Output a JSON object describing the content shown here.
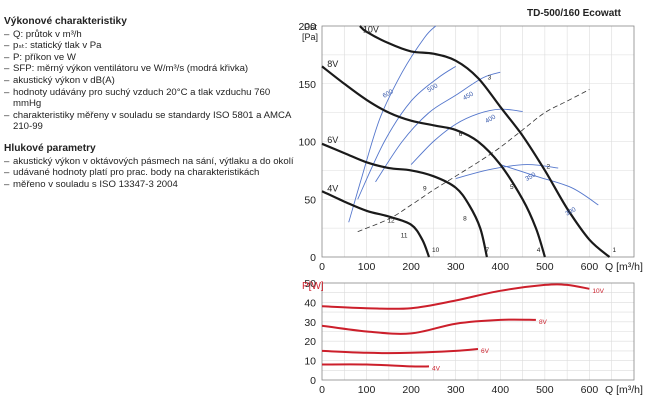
{
  "left_panel": {
    "perf_title": "Výkonové charakteristiky",
    "perf_items": [
      "Q: průtok v m³/h",
      "pₛₜ: statický tlak v Pa",
      "P: příkon ve W",
      "SFP: měrný výkon ventilátoru ve W/m³/s (modrá křivka)",
      "akustický výkon v dB(A)",
      "hodnoty udávány pro suchý vzduch 20°C a tlak vzduchu 760 mmHg",
      "charakteristiky měřeny v souladu se standardy ISO 5801 a AMCA 210-99"
    ],
    "noise_title": "Hlukové parametry",
    "noise_items": [
      "akustický výkon v oktávových pásmech na sání, výtlaku a do okolí",
      "udávané hodnoty platí pro prac. body na charakteristikách",
      "měřeno v souladu s ISO 13347-3 2004"
    ]
  },
  "chart_title": "TD-500/160 Ecowatt",
  "chart_data": [
    {
      "type": "line",
      "ylabel": "Pst [Pa]",
      "xlabel": "Q [m³/h]",
      "xlim": [
        0,
        700
      ],
      "ylim": [
        0,
        200
      ],
      "xticks": [
        0,
        100,
        200,
        300,
        400,
        500,
        600
      ],
      "yticks": [
        0,
        50,
        100,
        150,
        200
      ],
      "grid": true,
      "series": [
        {
          "name": "10V",
          "color": "#1a1a1a",
          "points": [
            [
              85,
              200
            ],
            [
              100,
              195
            ],
            [
              150,
              185
            ],
            [
              200,
              178
            ],
            [
              250,
              176
            ],
            [
              300,
              170
            ],
            [
              350,
              155
            ],
            [
              400,
              130
            ],
            [
              450,
              105
            ],
            [
              500,
              75
            ],
            [
              550,
              42
            ],
            [
              600,
              15
            ],
            [
              645,
              0
            ]
          ]
        },
        {
          "name": "8V",
          "color": "#1a1a1a",
          "points": [
            [
              0,
              165
            ],
            [
              50,
              150
            ],
            [
              100,
              136
            ],
            [
              150,
              125
            ],
            [
              200,
              118
            ],
            [
              250,
              114
            ],
            [
              300,
              110
            ],
            [
              350,
              100
            ],
            [
              400,
              80
            ],
            [
              450,
              50
            ],
            [
              480,
              25
            ],
            [
              500,
              0
            ]
          ]
        },
        {
          "name": "6V",
          "color": "#1a1a1a",
          "points": [
            [
              0,
              98
            ],
            [
              50,
              90
            ],
            [
              100,
              82
            ],
            [
              150,
              77
            ],
            [
              200,
              75
            ],
            [
              250,
              70
            ],
            [
              300,
              60
            ],
            [
              330,
              45
            ],
            [
              355,
              25
            ],
            [
              370,
              0
            ]
          ]
        },
        {
          "name": "4V",
          "color": "#1a1a1a",
          "points": [
            [
              0,
              57
            ],
            [
              50,
              48
            ],
            [
              100,
              40
            ],
            [
              150,
              35
            ],
            [
              200,
              28
            ],
            [
              225,
              15
            ],
            [
              240,
              0
            ]
          ]
        },
        {
          "name": "SFP 300",
          "color": "#5577cc",
          "points": [
            [
              400,
              80
            ],
            [
              480,
              70
            ],
            [
              560,
              60
            ],
            [
              620,
              45
            ]
          ]
        },
        {
          "name": "SFP 350",
          "color": "#5577cc",
          "points": [
            [
              300,
              68
            ],
            [
              380,
              76
            ],
            [
              460,
              80
            ],
            [
              530,
              77
            ]
          ]
        },
        {
          "name": "SFP 400",
          "color": "#5577cc",
          "points": [
            [
              200,
              80
            ],
            [
              250,
              100
            ],
            [
              300,
              115
            ],
            [
              350,
              124
            ],
            [
              400,
              128
            ],
            [
              450,
              126
            ]
          ]
        },
        {
          "name": "SFP 450",
          "color": "#5577cc",
          "points": [
            [
              120,
              65
            ],
            [
              180,
              100
            ],
            [
              240,
              125
            ],
            [
              300,
              140
            ],
            [
              360,
              155
            ],
            [
              400,
              160
            ]
          ]
        },
        {
          "name": "SFP 500",
          "color": "#5577cc",
          "points": [
            [
              80,
              50
            ],
            [
              140,
              100
            ],
            [
              200,
              135
            ],
            [
              260,
              155
            ],
            [
              300,
              165
            ]
          ]
        },
        {
          "name": "SFP 600",
          "color": "#5577cc",
          "points": [
            [
              60,
              30
            ],
            [
              90,
              70
            ],
            [
              130,
              120
            ],
            [
              180,
              160
            ],
            [
              230,
              190
            ],
            [
              255,
              200
            ]
          ]
        }
      ],
      "operating_line": [
        [
          80,
          22
        ],
        [
          150,
          33
        ],
        [
          200,
          45
        ],
        [
          250,
          58
        ],
        [
          300,
          70
        ],
        [
          350,
          82
        ],
        [
          400,
          95
        ],
        [
          450,
          110
        ],
        [
          500,
          125
        ],
        [
          550,
          135
        ],
        [
          600,
          145
        ]
      ],
      "point_labels": [
        {
          "label": "1",
          "q": 645,
          "p": 0
        },
        {
          "label": "2",
          "q": 497,
          "p": 75
        },
        {
          "label": "3",
          "q": 365,
          "p": 152
        },
        {
          "label": "4",
          "q": 475,
          "p": 0
        },
        {
          "label": "5",
          "q": 415,
          "p": 57
        },
        {
          "label": "6",
          "q": 300,
          "p": 103
        },
        {
          "label": "7",
          "q": 360,
          "p": 0
        },
        {
          "label": "8",
          "q": 310,
          "p": 30
        },
        {
          "label": "9",
          "q": 220,
          "p": 56
        },
        {
          "label": "10",
          "q": 240,
          "p": 0
        },
        {
          "label": "11",
          "q": 170,
          "p": 15
        },
        {
          "label": "12",
          "q": 140,
          "p": 28
        }
      ],
      "sfp_labels": [
        {
          "label": "600",
          "q": 150,
          "p": 140
        },
        {
          "label": "500",
          "q": 250,
          "p": 145
        },
        {
          "label": "450",
          "q": 330,
          "p": 138
        },
        {
          "label": "400",
          "q": 380,
          "p": 118
        },
        {
          "label": "350",
          "q": 470,
          "p": 68
        },
        {
          "label": "300",
          "q": 560,
          "p": 38
        }
      ],
      "curve_labels": [
        {
          "label": "10V",
          "q": 85,
          "p": 198
        },
        {
          "label": "8V",
          "q": 5,
          "p": 168
        },
        {
          "label": "6V",
          "q": 5,
          "p": 102
        },
        {
          "label": "4V",
          "q": 5,
          "p": 60
        }
      ]
    },
    {
      "type": "line",
      "ylabel": "P[W]",
      "xlabel": "Q [m³/h]",
      "xlim": [
        0,
        700
      ],
      "ylim": [
        0,
        50
      ],
      "xticks": [
        0,
        100,
        200,
        300,
        400,
        500,
        600
      ],
      "yticks": [
        0,
        10,
        20,
        30,
        40,
        50
      ],
      "grid": true,
      "series": [
        {
          "name": "10V",
          "color": "#cc1f2b",
          "points": [
            [
              0,
              38
            ],
            [
              100,
              37
            ],
            [
              200,
              37
            ],
            [
              300,
              41
            ],
            [
              400,
              46
            ],
            [
              500,
              49
            ],
            [
              550,
              49
            ],
            [
              600,
              47
            ]
          ]
        },
        {
          "name": "8V",
          "color": "#cc1f2b",
          "points": [
            [
              0,
              28
            ],
            [
              100,
              25
            ],
            [
              200,
              24
            ],
            [
              300,
              29
            ],
            [
              400,
              31
            ],
            [
              480,
              31
            ]
          ]
        },
        {
          "name": "6V",
          "color": "#cc1f2b",
          "points": [
            [
              0,
              15
            ],
            [
              100,
              14
            ],
            [
              200,
              14
            ],
            [
              300,
              15
            ],
            [
              350,
              16
            ]
          ]
        },
        {
          "name": "4V",
          "color": "#cc1f2b",
          "points": [
            [
              0,
              8
            ],
            [
              100,
              8
            ],
            [
              200,
              7
            ],
            [
              240,
              7
            ]
          ]
        }
      ]
    }
  ]
}
